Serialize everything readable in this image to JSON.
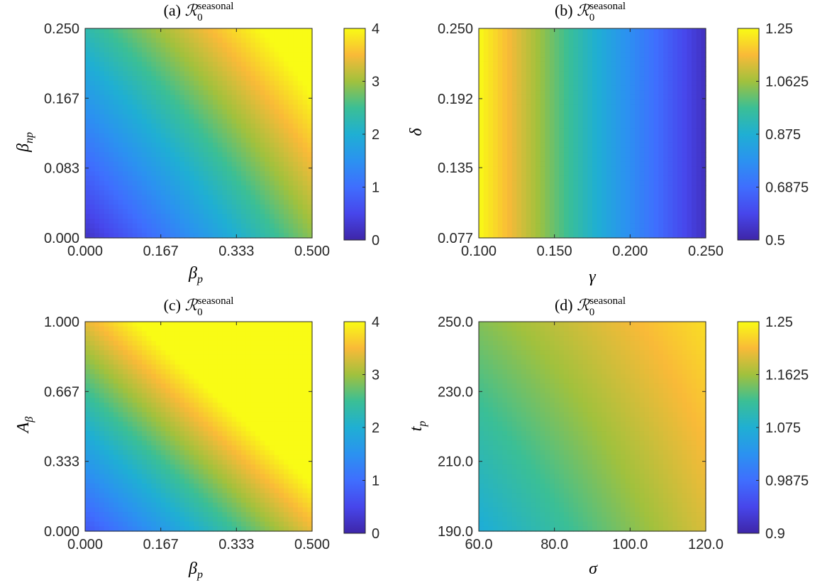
{
  "chart_data": [
    {
      "type": "heatmap",
      "panel": "a",
      "title_prefix": "(a) ",
      "title_symbol": "ℛ",
      "title_subscript": "0",
      "title_superscript": "seasonal",
      "xlabel": "β",
      "xlabel_sub": "p",
      "ylabel": "β",
      "ylabel_sub": "np",
      "xlim": [
        0,
        0.5
      ],
      "ylim": [
        0,
        0.25
      ],
      "clim": [
        0,
        4
      ],
      "xticks": [
        0,
        0.1667,
        0.3333,
        0.5
      ],
      "xtick_labels": [
        "0.000",
        "0.167",
        "0.333",
        "0.500"
      ],
      "yticks": [
        0,
        0.0833,
        0.1667,
        0.25
      ],
      "ytick_labels": [
        "0.000",
        "0.083",
        "0.167",
        "0.250"
      ],
      "cticks": [
        0,
        1,
        2,
        3,
        4
      ],
      "ctick_labels": [
        "0",
        "1",
        "2",
        "3",
        "4"
      ],
      "corner_values": {
        "x0_y0": 0.2,
        "x1_y0": 2.9,
        "x0_y1": 2.3,
        "x1_y1": 4.5
      }
    },
    {
      "type": "heatmap",
      "panel": "b",
      "title_prefix": "(b) ",
      "title_symbol": "ℛ",
      "title_subscript": "0",
      "title_superscript": "seasonal",
      "xlabel": "γ",
      "xlabel_sub": "",
      "ylabel": "δ",
      "ylabel_sub": "",
      "xlim": [
        0.1,
        0.25
      ],
      "ylim": [
        0.077,
        0.25
      ],
      "clim": [
        0.5,
        1.25
      ],
      "xticks": [
        0.1,
        0.15,
        0.2,
        0.25
      ],
      "xtick_labels": [
        "0.100",
        "0.150",
        "0.200",
        "0.250"
      ],
      "yticks": [
        0.077,
        0.135,
        0.192,
        0.25
      ],
      "ytick_labels": [
        "0.077",
        "0.135",
        "0.192",
        "0.250"
      ],
      "cticks": [
        0.5,
        0.6875,
        0.875,
        1.0625,
        1.25
      ],
      "ctick_labels": [
        "0.5",
        "0.6875",
        "0.875",
        "1.0625",
        "1.25"
      ],
      "corner_values": {
        "x0_y0": 1.25,
        "x1_y0": 0.53,
        "x0_y1": 1.25,
        "x1_y1": 0.53
      }
    },
    {
      "type": "heatmap",
      "panel": "c",
      "title_prefix": "(c) ",
      "title_symbol": "ℛ",
      "title_subscript": "0",
      "title_superscript": "seasonal",
      "xlabel": "β",
      "xlabel_sub": "p",
      "ylabel": "A",
      "ylabel_sub": "β",
      "xlim": [
        0,
        0.5
      ],
      "ylim": [
        0,
        1.0
      ],
      "clim": [
        0,
        4
      ],
      "xticks": [
        0,
        0.1667,
        0.3333,
        0.5
      ],
      "xtick_labels": [
        "0.000",
        "0.167",
        "0.333",
        "0.500"
      ],
      "yticks": [
        0,
        0.3333,
        0.6667,
        1.0
      ],
      "ytick_labels": [
        "0.000",
        "0.333",
        "0.667",
        "1.000"
      ],
      "cticks": [
        0,
        1,
        2,
        3,
        4
      ],
      "ctick_labels": [
        "0",
        "1",
        "2",
        "3",
        "4"
      ],
      "corner_values": {
        "x0_y0": 0.7,
        "x1_y0": 3.4,
        "x0_y1": 3.4,
        "x1_y1": 6.1
      }
    },
    {
      "type": "heatmap",
      "panel": "d",
      "title_prefix": "(d) ",
      "title_symbol": "ℛ",
      "title_subscript": "0",
      "title_superscript": "seasonal",
      "xlabel": "σ",
      "xlabel_sub": "",
      "ylabel": "t",
      "ylabel_sub": "p",
      "xlim": [
        60,
        120
      ],
      "ylim": [
        190,
        250
      ],
      "clim": [
        0.9,
        1.25
      ],
      "xticks": [
        60,
        80,
        100,
        120
      ],
      "xtick_labels": [
        "60.0",
        "80.0",
        "100.0",
        "120.0"
      ],
      "yticks": [
        190,
        210,
        230,
        250
      ],
      "ytick_labels": [
        "190.0",
        "210.0",
        "230.0",
        "250.0"
      ],
      "cticks": [
        0.9,
        0.9875,
        1.075,
        1.1625,
        1.25
      ],
      "ctick_labels": [
        "0.9",
        "0.9875",
        "1.075",
        "1.1625",
        "1.25"
      ],
      "corner_values": {
        "x0_y0": 1.07,
        "x1_y0": 1.19,
        "x0_y1": 1.15,
        "x1_y1": 1.23
      }
    }
  ]
}
